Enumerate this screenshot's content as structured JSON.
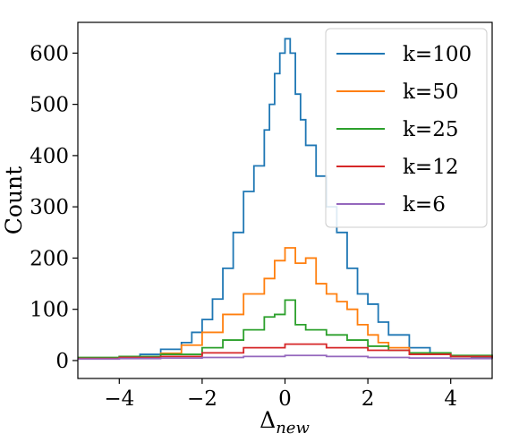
{
  "chart_data": {
    "type": "line",
    "title": "",
    "xlabel": "Δ",
    "xlabel_sub": "new",
    "ylabel": "Count",
    "xlim": [
      -5,
      5
    ],
    "ylim": [
      -35,
      660
    ],
    "x_ticks": [
      -4,
      -2,
      0,
      2,
      4
    ],
    "x_tick_labels": [
      "−4",
      "−2",
      "0",
      "2",
      "4"
    ],
    "y_ticks": [
      0,
      100,
      200,
      300,
      400,
      500,
      600
    ],
    "y_tick_labels": [
      "0",
      "100",
      "200",
      "300",
      "400",
      "500",
      "600"
    ],
    "legend_position": "top-right",
    "grid": false,
    "series": [
      {
        "name": "k=100",
        "color": "#1f77b4",
        "x": [
          -5.0,
          -4.5,
          -4.0,
          -3.5,
          -3.0,
          -2.5,
          -2.25,
          -2.0,
          -1.75,
          -1.5,
          -1.25,
          -1.0,
          -0.75,
          -0.5,
          -0.375,
          -0.25,
          -0.125,
          0.0,
          0.125,
          0.25,
          0.375,
          0.5,
          0.75,
          1.0,
          1.25,
          1.5,
          1.75,
          2.0,
          2.25,
          2.5,
          3.0,
          3.5,
          4.0,
          4.5,
          5.0
        ],
        "values": [
          4,
          5,
          8,
          12,
          22,
          35,
          55,
          80,
          120,
          180,
          250,
          330,
          380,
          450,
          500,
          560,
          600,
          628,
          600,
          520,
          470,
          420,
          360,
          300,
          250,
          180,
          130,
          110,
          75,
          50,
          25,
          14,
          8,
          6,
          4
        ]
      },
      {
        "name": "k=50",
        "color": "#ff7f0e",
        "x": [
          -5.0,
          -4.0,
          -3.0,
          -2.5,
          -2.0,
          -1.5,
          -1.0,
          -0.5,
          -0.25,
          0.0,
          0.25,
          0.5,
          0.75,
          1.0,
          1.25,
          1.5,
          1.75,
          2.0,
          2.25,
          2.5,
          3.0,
          4.0,
          5.0
        ],
        "values": [
          4,
          6,
          14,
          30,
          55,
          90,
          130,
          160,
          195,
          220,
          190,
          200,
          150,
          130,
          115,
          100,
          70,
          50,
          35,
          25,
          15,
          8,
          4
        ]
      },
      {
        "name": "k=25",
        "color": "#2ca02c",
        "x": [
          -5.0,
          -4.0,
          -3.0,
          -2.0,
          -1.5,
          -1.0,
          -0.5,
          -0.25,
          0.0,
          0.25,
          0.5,
          1.0,
          1.5,
          2.0,
          2.5,
          3.0,
          4.0,
          5.0
        ],
        "values": [
          6,
          8,
          12,
          25,
          40,
          60,
          85,
          90,
          118,
          70,
          60,
          50,
          40,
          28,
          20,
          15,
          10,
          6
        ]
      },
      {
        "name": "k=12",
        "color": "#d62728",
        "x": [
          -5.0,
          -4.0,
          -3.0,
          -2.0,
          -1.0,
          0.0,
          1.0,
          2.0,
          3.0,
          4.0,
          5.0
        ],
        "values": [
          4,
          6,
          8,
          15,
          25,
          32,
          25,
          20,
          12,
          8,
          5
        ]
      },
      {
        "name": "k=6",
        "color": "#9467bd",
        "x": [
          -5.0,
          -4.0,
          -3.0,
          -2.0,
          -1.0,
          0.0,
          1.0,
          2.0,
          3.0,
          4.0,
          5.0
        ],
        "values": [
          3,
          4,
          5,
          6,
          8,
          10,
          8,
          6,
          5,
          4,
          3
        ]
      }
    ]
  }
}
